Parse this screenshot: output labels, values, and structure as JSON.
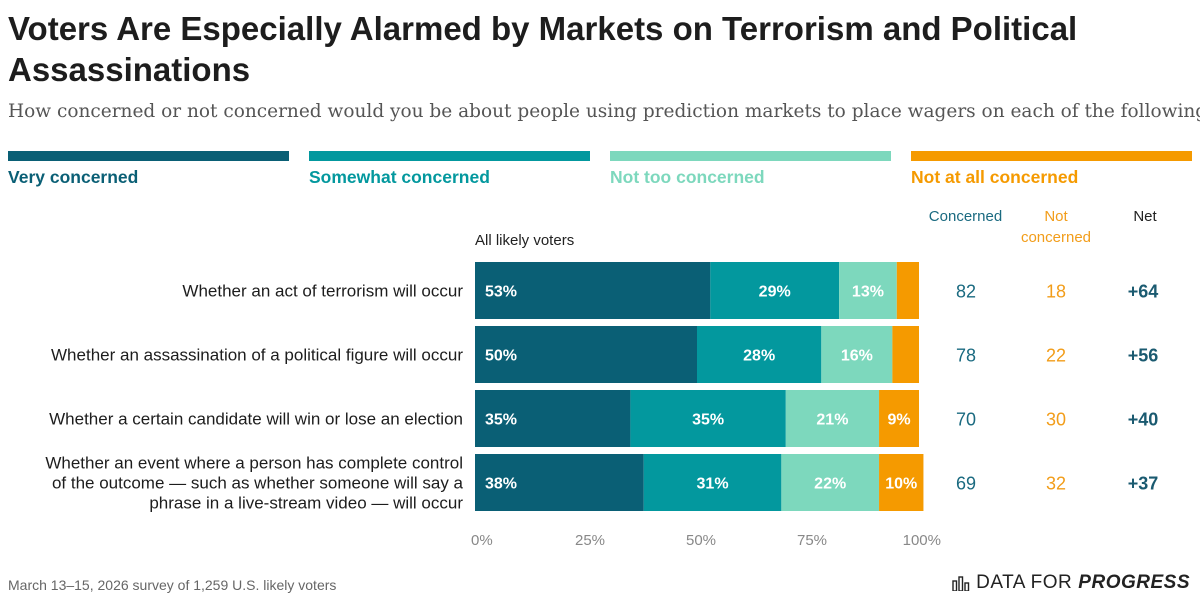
{
  "header": {
    "title": "Voters Are Especially Alarmed by Markets on Terrorism and Political Assassinations",
    "subtitle": "How concerned or not concerned would you be about people using prediction markets to place wagers on each of the following?"
  },
  "legend": [
    {
      "label": "Very concerned",
      "color": "#0a5f75"
    },
    {
      "label": "Somewhat concerned",
      "color": "#03989e"
    },
    {
      "label": "Not too concerned",
      "color": "#7dd8bd"
    },
    {
      "label": "Not at all concerned",
      "color": "#f59a00"
    }
  ],
  "columns": {
    "concerned": "Concerned",
    "not_concerned": "Not concerned",
    "net": "Net"
  },
  "group_label": "All likely voters",
  "colors": {
    "concerned_text": "#1a6a80",
    "not_concerned_text": "#f29d1a",
    "net_text": "#1a5a70",
    "axis_text": "#888888"
  },
  "chart_data": {
    "type": "bar",
    "orientation": "horizontal",
    "stacked": true,
    "xlim": [
      0,
      100
    ],
    "xticks": [
      0,
      25,
      50,
      75,
      100
    ],
    "xtick_labels": [
      "0%",
      "25%",
      "50%",
      "75%",
      "100%"
    ],
    "categories": [
      [
        "Whether an act of terrorism will occur"
      ],
      [
        "Whether an assassination of a political figure will occur"
      ],
      [
        "Whether a certain candidate will win or lose an election"
      ],
      [
        "Whether an event where a person has complete control",
        "of the outcome — such as whether someone will say a",
        "phrase in a live-stream video — will occur"
      ]
    ],
    "series": [
      {
        "name": "Very concerned",
        "values": [
          53,
          50,
          35,
          38
        ],
        "labels": [
          "53%",
          "50%",
          "35%",
          "38%"
        ]
      },
      {
        "name": "Somewhat concerned",
        "values": [
          29,
          28,
          35,
          31
        ],
        "labels": [
          "29%",
          "28%",
          "35%",
          "31%"
        ]
      },
      {
        "name": "Not too concerned",
        "values": [
          13,
          16,
          21,
          22
        ],
        "labels": [
          "13%",
          "16%",
          "21%",
          "22%"
        ]
      },
      {
        "name": "Not at all concerned",
        "values": [
          5,
          6,
          9,
          10
        ],
        "labels": [
          "",
          "",
          "9%",
          "10%"
        ]
      }
    ],
    "concerned": [
      "82",
      "78",
      "70",
      "69"
    ],
    "not_concerned": [
      "18",
      "22",
      "30",
      "32"
    ],
    "net": [
      "+64",
      "+56",
      "+40",
      "+37"
    ]
  },
  "footer": {
    "source": "March 13–15, 2026 survey of 1,259 U.S. likely voters",
    "brand_prefix": "DATA FOR",
    "brand_emphasis": "PROGRESS"
  }
}
